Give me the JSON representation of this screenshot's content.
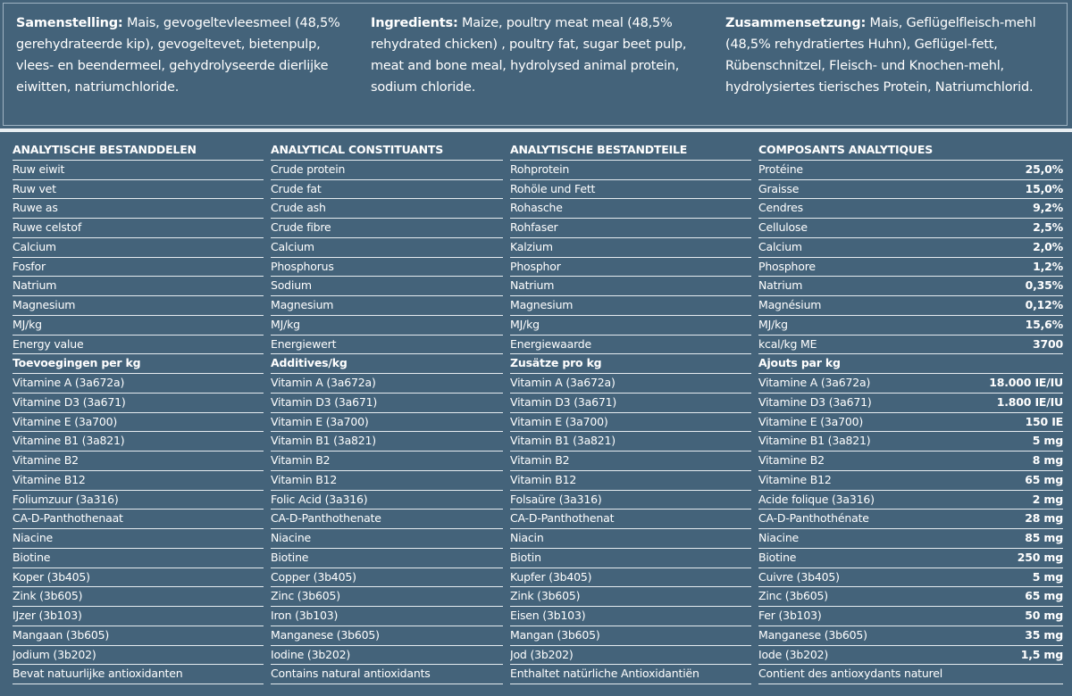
{
  "compositions": [
    {
      "label": "Samenstelling:",
      "text": "Mais, gevogeltevleesmeel (48,5% gerehydrateerde kip), gevogeltevet, bietenpulp, vlees- en beendermeel, gehydrolyseerde dierlijke eiwitten, natriumchloride."
    },
    {
      "label": "Ingredients:",
      "text": "Maize, poultry meat meal (48,5% rehydrated chicken) , poultry fat, sugar beet pulp, meat and bone meal, hydrolysed animal protein, sodium chloride."
    },
    {
      "label": "Zusammensetzung:",
      "text": "Mais, Geflügelfleisch-mehl (48,5% rehydratiertes Huhn), Geflügel-fett, Rübenschnitzel, Fleisch- und Knochen-mehl, hydrolysiertes tierisches Protein, Natriumchlorid."
    }
  ],
  "table": {
    "sections": [
      {
        "header": [
          "ANALYTISCHE BESTANDDELEN",
          "ANALYTICAL CONSTITUANTS",
          "ANALYTISCHE BESTANDTEILE",
          "COMPOSANTS ANALYTIQUES"
        ],
        "rows": [
          {
            "cells": [
              "Ruw eiwit",
              "Crude protein",
              "Rohprotein",
              "Protéine"
            ],
            "value": "25,0%"
          },
          {
            "cells": [
              "Ruw vet",
              "Crude fat",
              "Rohöle und Fett",
              "Graisse"
            ],
            "value": "15,0%"
          },
          {
            "cells": [
              "Ruwe as",
              "Crude ash",
              "Rohasche",
              "Cendres"
            ],
            "value": "9,2%"
          },
          {
            "cells": [
              "Ruwe celstof",
              "Crude fibre",
              "Rohfaser",
              "Cellulose"
            ],
            "value": "2,5%"
          },
          {
            "cells": [
              "Calcium",
              "Calcium",
              "Kalzium",
              "Calcium"
            ],
            "value": "2,0%"
          },
          {
            "cells": [
              "Fosfor",
              "Phosphorus",
              "Phosphor",
              "Phosphore"
            ],
            "value": "1,2%"
          },
          {
            "cells": [
              "Natrium",
              "Sodium",
              "Natrium",
              "Natrium"
            ],
            "value": "0,35%"
          },
          {
            "cells": [
              "Magnesium",
              "Magnesium",
              "Magnesium",
              "Magnésium"
            ],
            "value": "0,12%"
          },
          {
            "cells": [
              "MJ/kg",
              "MJ/kg",
              "MJ/kg",
              "MJ/kg"
            ],
            "value": "15,6%"
          },
          {
            "cells": [
              "Energy value",
              "Energiewert",
              "Energiewaarde",
              "kcal/kg ME"
            ],
            "value": "3700"
          }
        ]
      },
      {
        "header": [
          "Toevoegingen per kg",
          "Additives/kg",
          "Zusätze pro kg",
          "Ajouts par kg"
        ],
        "rows": [
          {
            "cells": [
              "Vitamine A (3a672a)",
              "Vitamin A (3a672a)",
              "Vitamin A (3a672a)",
              "Vitamine A (3a672a)"
            ],
            "value": "18.000 IE/IU"
          },
          {
            "cells": [
              "Vitamine D3 (3a671)",
              "Vitamin D3 (3a671)",
              "Vitamin D3 (3a671)",
              "Vitamine D3 (3a671)"
            ],
            "value": "1.800 IE/IU"
          },
          {
            "cells": [
              "Vitamine E (3a700)",
              "Vitamin E (3a700)",
              "Vitamin E (3a700)",
              "Vitamine E (3a700)"
            ],
            "value": "150 IE"
          },
          {
            "cells": [
              "Vitamine B1 (3a821)",
              "Vitamin B1 (3a821)",
              "Vitamin B1 (3a821)",
              "Vitamine B1 (3a821)"
            ],
            "value": "5 mg"
          },
          {
            "cells": [
              "Vitamine B2",
              "Vitamin B2",
              "Vitamin B2",
              "Vitamine B2"
            ],
            "value": "8 mg"
          },
          {
            "cells": [
              "Vitamine B12",
              "Vitamin B12",
              "Vitamin B12",
              "Vitamine B12"
            ],
            "value": "65 mg"
          },
          {
            "cells": [
              "Foliumzuur (3a316)",
              "Folic Acid (3a316)",
              "Folsaüre (3a316)",
              "Acide folique (3a316)"
            ],
            "value": "2 mg"
          },
          {
            "cells": [
              "CA-D-Panthothenaat",
              "CA-D-Panthothenate",
              "CA-D-Panthothenat",
              "CA-D-Panthothénate"
            ],
            "value": "28 mg"
          },
          {
            "cells": [
              "Niacine",
              "Niacine",
              "Niacin",
              "Niacine"
            ],
            "value": "85 mg"
          },
          {
            "cells": [
              "Biotine",
              "Biotine",
              "Biotin",
              "Biotine"
            ],
            "value": "250 mg"
          },
          {
            "cells": [
              "Koper (3b405)",
              "Copper (3b405)",
              "Kupfer (3b405)",
              "Cuivre (3b405)"
            ],
            "value": "5 mg"
          },
          {
            "cells": [
              "Zink (3b605)",
              "Zinc (3b605)",
              "Zink (3b605)",
              "Zinc (3b605)"
            ],
            "value": "65 mg"
          },
          {
            "cells": [
              "IJzer (3b103)",
              "Iron (3b103)",
              "Eisen (3b103)",
              "Fer (3b103)"
            ],
            "value": "50 mg"
          },
          {
            "cells": [
              "Mangaan (3b605)",
              "Manganese (3b605)",
              "Mangan (3b605)",
              "Manganese (3b605)"
            ],
            "value": "35 mg"
          },
          {
            "cells": [
              "Jodium (3b202)",
              "Iodine (3b202)",
              "Jod (3b202)",
              "Iode (3b202)"
            ],
            "value": "1,5 mg"
          }
        ]
      }
    ],
    "footer": [
      "Bevat natuurlijke antioxidanten",
      "Contains natural antioxidants",
      "Enthaltet natürliche Antioxidantiën",
      "Contient des antioxydants naturel"
    ]
  }
}
